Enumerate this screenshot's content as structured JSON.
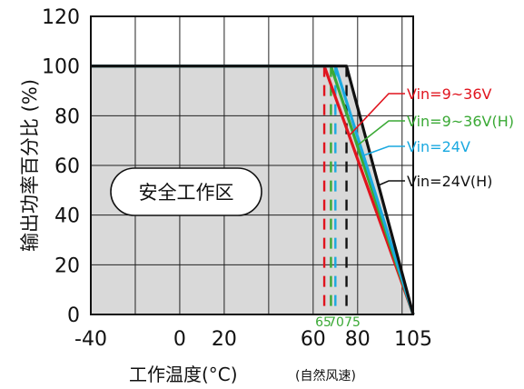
{
  "chart_data": {
    "type": "line",
    "xlabel": "工作温度(°C)",
    "xlabel_note": "(自然风速)",
    "ylabel": "输出功率百分比 (%)",
    "xlim": [
      -40,
      105
    ],
    "ylim": [
      0,
      120
    ],
    "x_ticks": [
      "-40",
      "0",
      "20",
      "60",
      "80",
      "105"
    ],
    "y_ticks": [
      "0",
      "20",
      "40",
      "60",
      "80",
      "100",
      "120"
    ],
    "grid": true,
    "safe_zone_label": "安全工作区",
    "derating_start_labels": [
      "65",
      "70",
      "75"
    ],
    "series": [
      {
        "name": "Vin=9~36V",
        "color": "#e0141e",
        "x": [
          -40,
          65,
          105
        ],
        "y": [
          100,
          100,
          0
        ]
      },
      {
        "name": "Vin=9~36V(H)",
        "color": "#3aa935",
        "x": [
          -40,
          68,
          105
        ],
        "y": [
          100,
          100,
          0
        ]
      },
      {
        "name": "Vin=24V",
        "color": "#1aa9e0",
        "x": [
          -40,
          70,
          105
        ],
        "y": [
          100,
          100,
          0
        ]
      },
      {
        "name": "Vin=24V(H)",
        "color": "#111111",
        "x": [
          -40,
          75,
          105
        ],
        "y": [
          100,
          100,
          0
        ]
      }
    ],
    "tick_label_color": "#3aa935",
    "safe_area_fill": "#d9d9d9"
  }
}
